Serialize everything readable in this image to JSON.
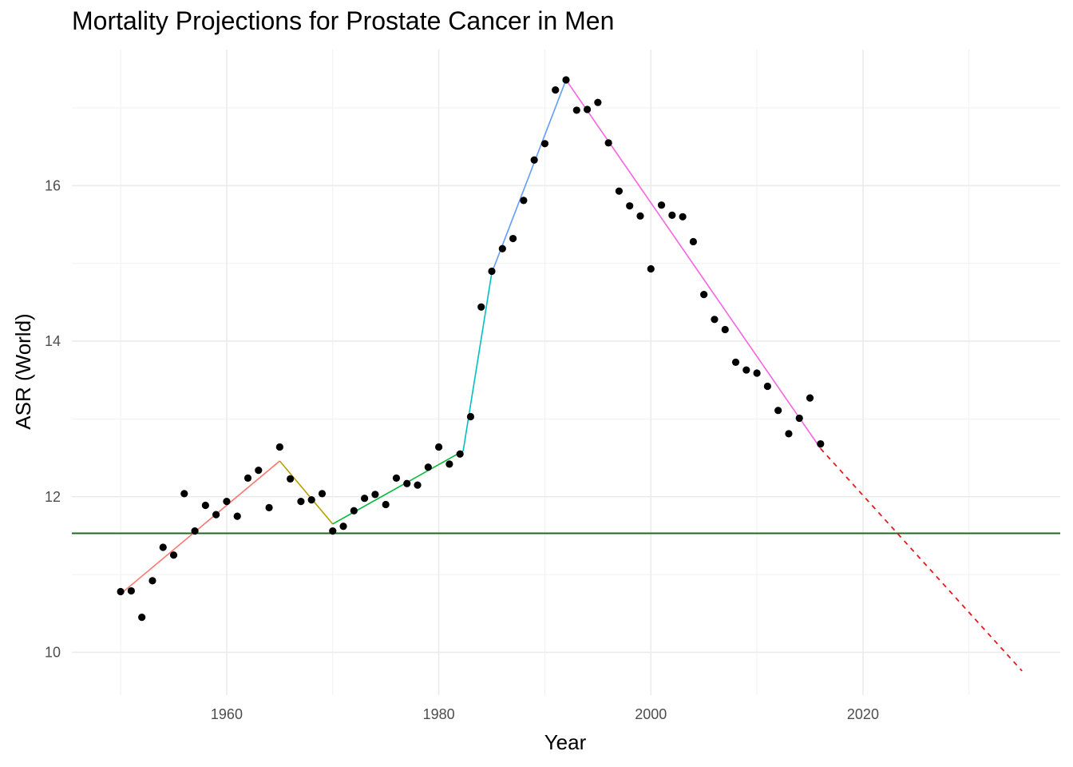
{
  "chart_data": {
    "type": "scatter",
    "title": "Mortality Projections for Prostate Cancer in Men",
    "xlabel": "Year",
    "ylabel": "ASR (World)",
    "xlim": [
      1945.4,
      2038.6
    ],
    "ylim": [
      9.45,
      17.75
    ],
    "x_ticks": [
      1960,
      1980,
      2000,
      2020
    ],
    "x_tick_labels": [
      "1960",
      "1980",
      "2000",
      "2020"
    ],
    "y_ticks": [
      10,
      12,
      14,
      16
    ],
    "y_tick_labels": [
      "10",
      "12",
      "14",
      "16"
    ],
    "grid": true,
    "legend": "none",
    "points": {
      "x": [
        1950,
        1951,
        1952,
        1953,
        1954,
        1955,
        1956,
        1957,
        1958,
        1959,
        1960,
        1961,
        1962,
        1963,
        1964,
        1965,
        1966,
        1967,
        1968,
        1969,
        1970,
        1971,
        1972,
        1973,
        1974,
        1975,
        1976,
        1977,
        1978,
        1979,
        1980,
        1981,
        1982,
        1983,
        1984,
        1985,
        1986,
        1987,
        1988,
        1989,
        1990,
        1991,
        1992,
        1993,
        1994,
        1995,
        1996,
        1997,
        1998,
        1999,
        2000,
        2001,
        2002,
        2003,
        2004,
        2005,
        2006,
        2007,
        2008,
        2009,
        2010,
        2011,
        2012,
        2013,
        2014,
        2015,
        2016
      ],
      "y": [
        10.78,
        10.79,
        10.45,
        10.92,
        11.35,
        11.25,
        12.04,
        11.56,
        11.89,
        11.77,
        11.94,
        11.75,
        12.24,
        12.34,
        11.86,
        12.64,
        12.23,
        11.94,
        11.96,
        12.04,
        11.56,
        11.62,
        11.82,
        11.98,
        12.03,
        11.9,
        12.24,
        12.17,
        12.15,
        12.38,
        12.64,
        12.42,
        12.55,
        13.03,
        14.44,
        14.9,
        15.19,
        15.32,
        15.81,
        16.33,
        16.54,
        17.23,
        17.36,
        16.97,
        16.98,
        17.07,
        16.55,
        15.93,
        15.74,
        15.61,
        14.93,
        15.75,
        15.62,
        15.6,
        15.28,
        14.6,
        14.28,
        14.15,
        13.73,
        13.63,
        13.59,
        13.42,
        13.11,
        12.81,
        13.01,
        13.27,
        12.68
      ]
    },
    "segments": [
      {
        "x": [
          1950,
          1965
        ],
        "y": [
          10.75,
          12.46
        ],
        "color": "#F8766D"
      },
      {
        "x": [
          1965,
          1970
        ],
        "y": [
          12.46,
          11.65
        ],
        "color": "#B79F00"
      },
      {
        "x": [
          1970,
          1982.3
        ],
        "y": [
          11.65,
          12.59
        ],
        "color": "#00BA38"
      },
      {
        "x": [
          1982.3,
          1985
        ],
        "y": [
          12.59,
          14.88
        ],
        "color": "#00BFC4"
      },
      {
        "x": [
          1985,
          1992
        ],
        "y": [
          14.88,
          17.36
        ],
        "color": "#619CFF"
      },
      {
        "x": [
          1992,
          2016
        ],
        "y": [
          17.36,
          12.62
        ],
        "color": "#F564E3"
      }
    ],
    "projection": {
      "x": [
        2016,
        2035
      ],
      "y": [
        12.62,
        9.76
      ],
      "color": "#E41A1C",
      "style": "dashed"
    },
    "reference_line": {
      "y": 11.53,
      "color": "#1E6A1E"
    }
  }
}
